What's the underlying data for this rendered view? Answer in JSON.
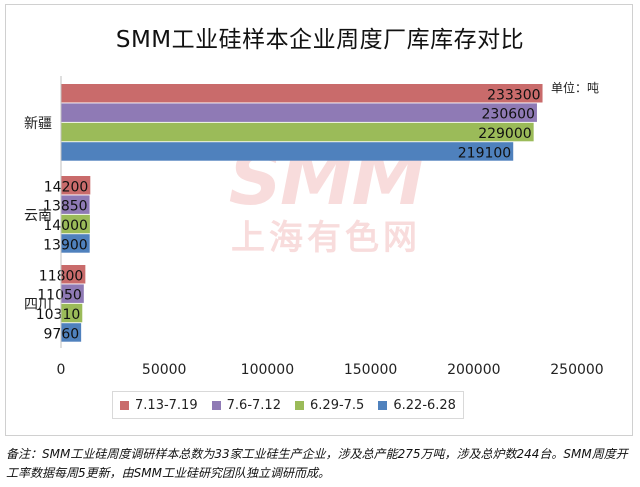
{
  "chart_data": {
    "type": "bar",
    "orientation": "horizontal",
    "title": "SMM工业硅样本企业周度厂库库存对比",
    "unit_label": "单位：吨",
    "categories": [
      "新疆",
      "云南",
      "四川"
    ],
    "series": [
      {
        "name": "7.13-7.19",
        "color": "#c96b6b",
        "values": [
          233300,
          14200,
          11800
        ]
      },
      {
        "name": "7.6-7.12",
        "color": "#8f7ab5",
        "values": [
          230600,
          13850,
          11050
        ]
      },
      {
        "name": "6.29-7.5",
        "color": "#9bbb59",
        "values": [
          229000,
          14000,
          10310
        ]
      },
      {
        "name": "6.22-6.28",
        "color": "#4f81bd",
        "values": [
          219100,
          13900,
          9760
        ]
      }
    ],
    "xlim": [
      0,
      250000
    ],
    "xticks": [
      0,
      50000,
      100000,
      150000,
      200000,
      250000
    ],
    "xtick_labels": [
      "0",
      "50000",
      "100000",
      "150000",
      "200000",
      "250000"
    ],
    "grid": false,
    "legend_position": "bottom"
  },
  "watermark": {
    "line1": "SMM",
    "line2": "上海有色网"
  },
  "note": "备注：SMM工业硅周度调研样本总数为33家工业硅生产企业，涉及总产能275万吨，涉及总炉数244台。SMM周度开工率数据每周5更新，由SMM工业硅研究团队独立调研而成。"
}
